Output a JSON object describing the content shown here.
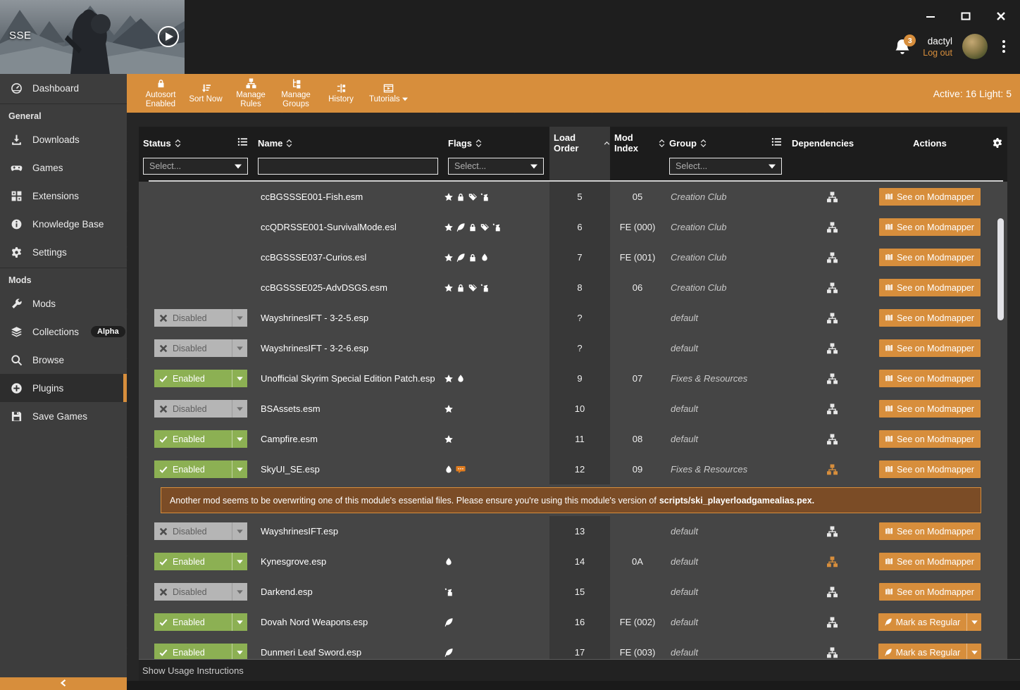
{
  "header": {
    "game_title": "SSE",
    "window_controls": [
      "minimize",
      "maximize",
      "close"
    ],
    "user": {
      "name": "dactyl",
      "logout_label": "Log out",
      "notification_count": "3"
    }
  },
  "toolbar": {
    "buttons": [
      {
        "id": "autosort",
        "label": "Autosort\nEnabled",
        "icon": "lock"
      },
      {
        "id": "sort-now",
        "label": "Sort Now",
        "icon": "sort"
      },
      {
        "id": "manage-rules",
        "label": "Manage\nRules",
        "icon": "sitemap"
      },
      {
        "id": "manage-groups",
        "label": "Manage\nGroups",
        "icon": "tree"
      },
      {
        "id": "history",
        "label": "History",
        "icon": "history"
      },
      {
        "id": "tutorials",
        "label": "Tutorials",
        "icon": "video",
        "caret": true
      }
    ],
    "status_summary": "Active: 16 Light: 5"
  },
  "sidebar": {
    "top_item": {
      "id": "dashboard",
      "label": "Dashboard",
      "icon": "dashboard"
    },
    "sections": [
      {
        "label": "General",
        "items": [
          {
            "id": "downloads",
            "label": "Downloads",
            "icon": "download"
          },
          {
            "id": "games",
            "label": "Games",
            "icon": "gamepad"
          },
          {
            "id": "extensions",
            "label": "Extensions",
            "icon": "extensions"
          },
          {
            "id": "knowledge-base",
            "label": "Knowledge Base",
            "icon": "info"
          },
          {
            "id": "settings",
            "label": "Settings",
            "icon": "gear"
          }
        ]
      },
      {
        "label": "Mods",
        "items": [
          {
            "id": "mods",
            "label": "Mods",
            "icon": "wrench"
          },
          {
            "id": "collections",
            "label": "Collections",
            "icon": "layers",
            "badge": "Alpha"
          },
          {
            "id": "browse",
            "label": "Browse",
            "icon": "search"
          },
          {
            "id": "plugins",
            "label": "Plugins",
            "icon": "plus-circle",
            "active": true
          },
          {
            "id": "save-games",
            "label": "Save Games",
            "icon": "floppy"
          }
        ]
      }
    ]
  },
  "table": {
    "filter_placeholder": "Select...",
    "name_filter_value": "",
    "columns": [
      {
        "key": "status",
        "label": "Status",
        "sort": "both",
        "list_icon": true,
        "filter": "select"
      },
      {
        "key": "name",
        "label": "Name",
        "sort": "both",
        "filter": "input"
      },
      {
        "key": "flags",
        "label": "Flags",
        "sort": "both",
        "filter": "select"
      },
      {
        "key": "load_order",
        "label": "Load Order",
        "sort": "asc",
        "highlight": true
      },
      {
        "key": "mod_index",
        "label": "Mod Index",
        "sort": "both"
      },
      {
        "key": "group",
        "label": "Group",
        "sort": "both",
        "list_icon": true,
        "filter": "select"
      },
      {
        "key": "dependencies",
        "label": "Dependencies"
      },
      {
        "key": "actions",
        "label": "Actions",
        "center": true
      },
      {
        "key": "gear",
        "label": "",
        "gear": true
      }
    ],
    "status_labels": {
      "enabled": "Enabled",
      "disabled": "Disabled"
    },
    "rows": [
      {
        "status": null,
        "name": "ccBGSSSE001-Fish.esm",
        "flags": [
          "star",
          "lock",
          "tags",
          "jar"
        ],
        "load_order": "5",
        "mod_index": "05",
        "group": "Creation Club",
        "dep_orange": false,
        "action": {
          "label": "See on Modmapper",
          "icon": "modmapper",
          "caret": false
        }
      },
      {
        "status": null,
        "name": "ccQDRSSE001-SurvivalMode.esl",
        "flags": [
          "star",
          "feather",
          "lock",
          "tags",
          "jar"
        ],
        "load_order": "6",
        "mod_index": "FE (000)",
        "group": "Creation Club",
        "dep_orange": false,
        "action": {
          "label": "See on Modmapper",
          "icon": "modmapper",
          "caret": false
        }
      },
      {
        "status": null,
        "name": "ccBGSSSE037-Curios.esl",
        "flags": [
          "star",
          "feather",
          "lock",
          "droplet"
        ],
        "load_order": "7",
        "mod_index": "FE (001)",
        "group": "Creation Club",
        "dep_orange": false,
        "action": {
          "label": "See on Modmapper",
          "icon": "modmapper",
          "caret": false
        }
      },
      {
        "status": null,
        "name": "ccBGSSSE025-AdvDSGS.esm",
        "flags": [
          "star",
          "lock",
          "tags",
          "jar"
        ],
        "load_order": "8",
        "mod_index": "06",
        "group": "Creation Club",
        "dep_orange": false,
        "action": {
          "label": "See on Modmapper",
          "icon": "modmapper",
          "caret": false
        }
      },
      {
        "status": "disabled",
        "name": "WayshrinesIFT - 3-2-5.esp",
        "flags": [],
        "load_order": "?",
        "mod_index": "",
        "group": "default",
        "dep_orange": false,
        "action": {
          "label": "See on Modmapper",
          "icon": "modmapper",
          "caret": false
        }
      },
      {
        "status": "disabled",
        "name": "WayshrinesIFT - 3-2-6.esp",
        "flags": [],
        "load_order": "?",
        "mod_index": "",
        "group": "default",
        "dep_orange": false,
        "action": {
          "label": "See on Modmapper",
          "icon": "modmapper",
          "caret": false
        }
      },
      {
        "status": "enabled",
        "name": "Unofficial Skyrim Special Edition Patch.esp",
        "flags": [
          "star",
          "droplet"
        ],
        "load_order": "9",
        "mod_index": "07",
        "group": "Fixes & Resources",
        "dep_orange": false,
        "action": {
          "label": "See on Modmapper",
          "icon": "modmapper",
          "caret": false
        }
      },
      {
        "status": "disabled",
        "name": "BSAssets.esm",
        "flags": [
          "star"
        ],
        "load_order": "10",
        "mod_index": "",
        "group": "default",
        "dep_orange": false,
        "action": {
          "label": "See on Modmapper",
          "icon": "modmapper",
          "caret": false
        }
      },
      {
        "status": "enabled",
        "name": "Campfire.esm",
        "flags": [
          "star"
        ],
        "load_order": "11",
        "mod_index": "08",
        "group": "default",
        "dep_orange": false,
        "action": {
          "label": "See on Modmapper",
          "icon": "modmapper",
          "caret": false
        }
      },
      {
        "status": "enabled",
        "name": "SkyUI_SE.esp",
        "flags": [
          "droplet",
          "comment"
        ],
        "load_order": "12",
        "mod_index": "09",
        "group": "Fixes & Resources",
        "dep_orange": true,
        "action": {
          "label": "See on Modmapper",
          "icon": "modmapper",
          "caret": false
        }
      },
      {
        "status": "disabled",
        "name": "WayshrinesIFT.esp",
        "flags": [],
        "load_order": "13",
        "mod_index": "",
        "group": "default",
        "dep_orange": false,
        "action": {
          "label": "See on Modmapper",
          "icon": "modmapper",
          "caret": false
        }
      },
      {
        "status": "enabled",
        "name": "Kynesgrove.esp",
        "flags": [
          "droplet"
        ],
        "load_order": "14",
        "mod_index": "0A",
        "group": "default",
        "dep_orange": true,
        "action": {
          "label": "See on Modmapper",
          "icon": "modmapper",
          "caret": false
        }
      },
      {
        "status": "disabled",
        "name": "Darkend.esp",
        "flags": [
          "jar"
        ],
        "load_order": "15",
        "mod_index": "",
        "group": "default",
        "dep_orange": false,
        "action": {
          "label": "See on Modmapper",
          "icon": "modmapper",
          "caret": false
        }
      },
      {
        "status": "enabled",
        "name": "Dovah Nord Weapons.esp",
        "flags": [
          "feather"
        ],
        "load_order": "16",
        "mod_index": "FE (002)",
        "group": "default",
        "dep_orange": false,
        "action": {
          "label": "Mark as Regular",
          "icon": "feather",
          "caret": true
        }
      },
      {
        "status": "enabled",
        "name": "Dunmeri Leaf Sword.esp",
        "flags": [
          "feather"
        ],
        "load_order": "17",
        "mod_index": "FE (003)",
        "group": "default",
        "dep_orange": false,
        "action": {
          "label": "Mark as Regular",
          "icon": "feather",
          "caret": true
        }
      }
    ],
    "warning": {
      "after_row_index": 9,
      "text": "Another mod seems to be overwriting one of this module's essential files. Please ensure you're using this module's version of",
      "file": "scripts/ski_playerloadgamealias.pex."
    }
  },
  "footer": {
    "label": "Show Usage Instructions"
  }
}
